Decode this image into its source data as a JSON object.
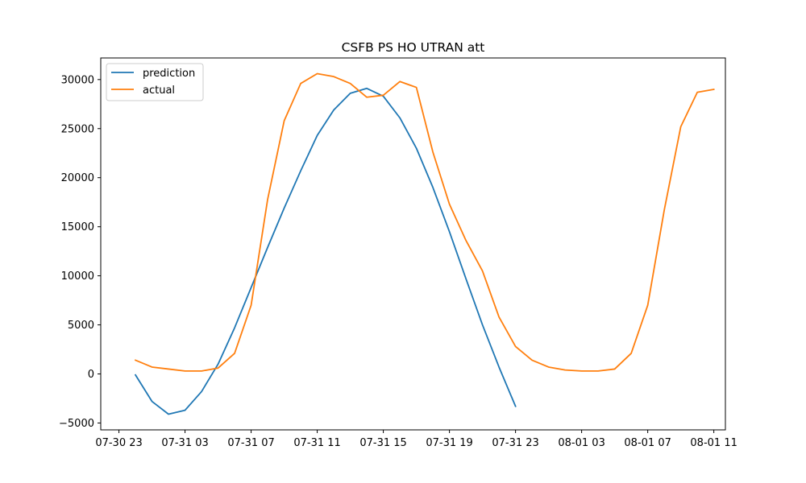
{
  "chart_data": {
    "type": "line",
    "title": "CSFB PS HO UTRAN att",
    "xlabel": "",
    "ylabel": "",
    "x_start": "2024-07-30T23:00",
    "x_step_hours": 1,
    "xlim_hours": [
      -1.1,
      36.7
    ],
    "ylim": [
      -5700,
      32200
    ],
    "y_ticks": [
      -5000,
      0,
      5000,
      10000,
      15000,
      20000,
      25000,
      30000
    ],
    "y_tick_labels": [
      "−5000",
      "0",
      "5000",
      "10000",
      "15000",
      "20000",
      "25000",
      "30000"
    ],
    "x_ticks_hours": [
      0,
      4,
      8,
      12,
      16,
      20,
      24,
      28,
      32,
      36
    ],
    "x_tick_labels": [
      "07-30 23",
      "07-31 03",
      "07-31 07",
      "07-31 11",
      "07-31 15",
      "07-31 19",
      "07-31 23",
      "08-01 03",
      "08-01 07",
      "08-01 11"
    ],
    "grid": false,
    "legend_position": "upper left",
    "series": [
      {
        "name": "prediction",
        "color": "#1f77b4",
        "x": [
          1,
          2,
          3,
          4,
          5,
          6,
          7,
          8,
          9,
          10,
          11,
          12,
          13,
          14,
          15,
          16,
          17,
          18,
          19,
          20,
          21,
          22,
          23,
          24
        ],
        "values": [
          -100,
          -2800,
          -4100,
          -3700,
          -1800,
          1000,
          4700,
          8800,
          12900,
          16900,
          20700,
          24300,
          26900,
          28600,
          29100,
          28300,
          26100,
          23000,
          19000,
          14500,
          9700,
          5000,
          700,
          -3300
        ]
      },
      {
        "name": "actual",
        "color": "#ff7f0e",
        "x": [
          1,
          2,
          3,
          4,
          5,
          6,
          7,
          8,
          9,
          10,
          11,
          12,
          13,
          14,
          15,
          16,
          17,
          18,
          19,
          20,
          21,
          22,
          23,
          24,
          25,
          26,
          27,
          28,
          29,
          30,
          31,
          32,
          33,
          34,
          35,
          36
        ],
        "values": [
          1400,
          700,
          500,
          300,
          300,
          600,
          2100,
          7000,
          17800,
          25800,
          29600,
          30600,
          30300,
          29600,
          28200,
          28400,
          29800,
          29200,
          22600,
          17300,
          13600,
          10500,
          5800,
          2800,
          1400,
          700,
          400,
          300,
          300,
          500,
          2100,
          7000,
          16700,
          25200,
          28700,
          29000
        ]
      }
    ]
  }
}
